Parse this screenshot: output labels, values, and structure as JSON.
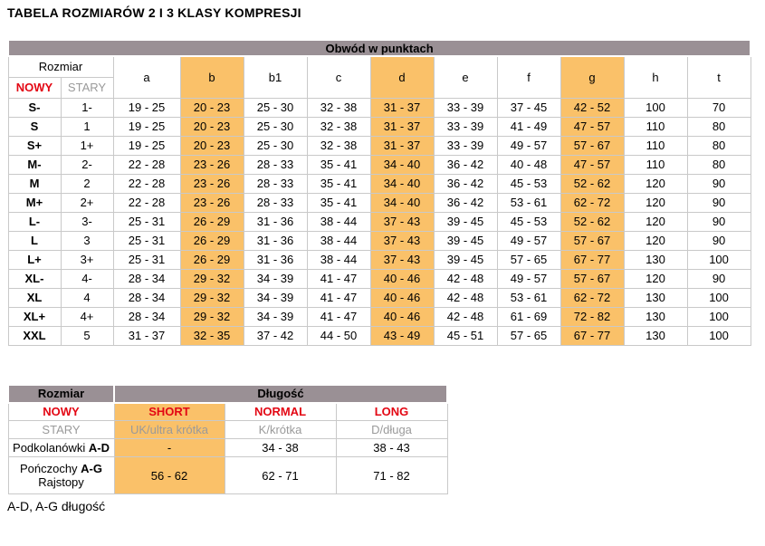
{
  "page": {
    "title": "TABELA ROZMIARÓW 2 I 3 KLASY KOMPRESJI",
    "footnote": "A-D, A-G długość"
  },
  "colors": {
    "header_bg": "#9a9095",
    "highlight_orange": "#fac169",
    "accent_red": "#e30613",
    "muted_gray": "#9a9a9a",
    "border": "#c9c9c9"
  },
  "size_table": {
    "span_header": "Obwód w punktach",
    "rozmiar_label": "Rozmiar",
    "col_new": "NOWY",
    "col_old": "STARY",
    "measure_columns": [
      "a",
      "b",
      "b1",
      "c",
      "d",
      "e",
      "f",
      "g",
      "h",
      "t"
    ],
    "highlighted_columns": [
      "b",
      "d",
      "g"
    ],
    "rows": [
      {
        "nowy": "S-",
        "stary": "1-",
        "values": [
          "19 - 25",
          "20 - 23",
          "25 - 30",
          "32 - 38",
          "31 - 37",
          "33 - 39",
          "37 - 45",
          "42 - 52",
          "100",
          "70"
        ]
      },
      {
        "nowy": "S",
        "stary": "1",
        "values": [
          "19 - 25",
          "20 - 23",
          "25 - 30",
          "32 - 38",
          "31 - 37",
          "33 - 39",
          "41 - 49",
          "47 - 57",
          "110",
          "80"
        ]
      },
      {
        "nowy": "S+",
        "stary": "1+",
        "values": [
          "19 - 25",
          "20 - 23",
          "25 - 30",
          "32 - 38",
          "31 - 37",
          "33 - 39",
          "49 - 57",
          "57 - 67",
          "110",
          "80"
        ]
      },
      {
        "nowy": "M-",
        "stary": "2-",
        "values": [
          "22 - 28",
          "23 - 26",
          "28 - 33",
          "35 - 41",
          "34 - 40",
          "36 - 42",
          "40 - 48",
          "47 - 57",
          "110",
          "80"
        ]
      },
      {
        "nowy": "M",
        "stary": "2",
        "values": [
          "22 - 28",
          "23 - 26",
          "28 - 33",
          "35 - 41",
          "34 - 40",
          "36 - 42",
          "45 - 53",
          "52 - 62",
          "120",
          "90"
        ]
      },
      {
        "nowy": "M+",
        "stary": "2+",
        "values": [
          "22 - 28",
          "23 - 26",
          "28 - 33",
          "35 - 41",
          "34 - 40",
          "36 - 42",
          "53 - 61",
          "62 - 72",
          "120",
          "90"
        ]
      },
      {
        "nowy": "L-",
        "stary": "3-",
        "values": [
          "25 - 31",
          "26 - 29",
          "31 - 36",
          "38 - 44",
          "37 - 43",
          "39 - 45",
          "45 - 53",
          "52 - 62",
          "120",
          "90"
        ]
      },
      {
        "nowy": "L",
        "stary": "3",
        "values": [
          "25 - 31",
          "26 - 29",
          "31 - 36",
          "38 - 44",
          "37 - 43",
          "39 - 45",
          "49 - 57",
          "57 - 67",
          "120",
          "90"
        ]
      },
      {
        "nowy": "L+",
        "stary": "3+",
        "values": [
          "25 - 31",
          "26 - 29",
          "31 - 36",
          "38 - 44",
          "37 - 43",
          "39 - 45",
          "57 - 65",
          "67 - 77",
          "130",
          "100"
        ]
      },
      {
        "nowy": "XL-",
        "stary": "4-",
        "values": [
          "28 - 34",
          "29 - 32",
          "34 - 39",
          "41 - 47",
          "40 - 46",
          "42 - 48",
          "49 - 57",
          "57 - 67",
          "120",
          "90"
        ]
      },
      {
        "nowy": "XL",
        "stary": "4",
        "values": [
          "28 - 34",
          "29 - 32",
          "34 - 39",
          "41 - 47",
          "40 - 46",
          "42 - 48",
          "53 - 61",
          "62 - 72",
          "130",
          "100"
        ]
      },
      {
        "nowy": "XL+",
        "stary": "4+",
        "values": [
          "28 - 34",
          "29 - 32",
          "34 - 39",
          "41 - 47",
          "40 - 46",
          "42 - 48",
          "61 - 69",
          "72 - 82",
          "130",
          "100"
        ]
      },
      {
        "nowy": "XXL",
        "stary": "5",
        "values": [
          "31 - 37",
          "32 - 35",
          "37 - 42",
          "44 - 50",
          "43 - 49",
          "45 - 51",
          "57 - 65",
          "67 - 77",
          "130",
          "100"
        ]
      }
    ]
  },
  "length_table": {
    "header_rozmiar": "Rozmiar",
    "header_dlugosc": "Długość",
    "new_row": {
      "label": "NOWY",
      "values": [
        "SHORT",
        "NORMAL",
        "LONG"
      ]
    },
    "old_row": {
      "label": "STARY",
      "values": [
        "UK/ultra krótka",
        "K/krótka",
        "D/długa"
      ]
    },
    "garment_rows": [
      {
        "label": "Podkolanówki",
        "label_range": "A-D",
        "label_line2": "",
        "values": [
          "-",
          "34 - 38",
          "38 - 43"
        ]
      },
      {
        "label": "Pończochy",
        "label_range": "A-G",
        "label_line2": "Rajstopy",
        "values": [
          "56 - 62",
          "62 - 71",
          "71 - 82"
        ]
      }
    ]
  }
}
